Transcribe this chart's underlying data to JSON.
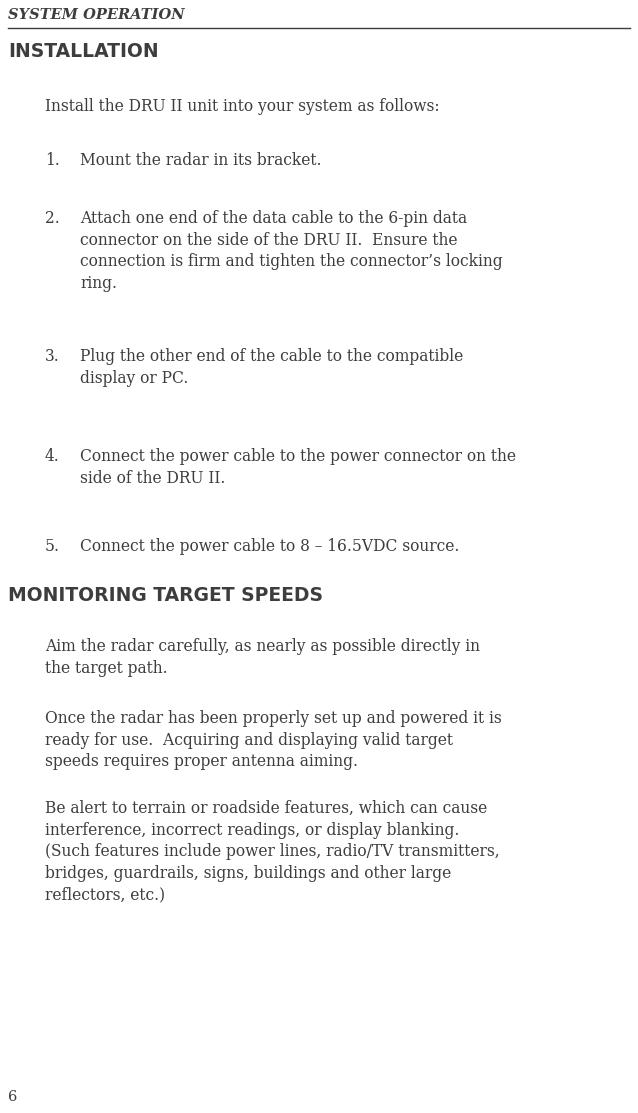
{
  "bg_color": "#ffffff",
  "text_color": "#3d3d3d",
  "header_text": "SYSTEM OPERATION",
  "page_number": "6",
  "section1_title": "INSTALLATION",
  "section1_intro": "Install the DRU II unit into your system as follows:",
  "list_items": [
    "Mount the radar in its bracket.",
    "Attach one end of the data cable to the 6-pin data\nconnector on the side of the DRU II.  Ensure the\nconnection is firm and tighten the connector’s locking\nring.",
    "Plug the other end of the cable to the compatible\ndisplay or PC.",
    "Connect the power cable to the power connector on the\nside of the DRU II.",
    "Connect the power cable to 8 – 16.5VDC source."
  ],
  "section2_title": "MONITORING TARGET SPEEDS",
  "para1": "Aim the radar carefully, as nearly as possible directly in\nthe target path.",
  "para2": "Once the radar has been properly set up and powered it is\nready for use.  Acquiring and displaying valid target\nspeeds requires proper antenna aiming.",
  "para3": "Be alert to terrain or roadside features, which can cause\ninterference, incorrect readings, or display blanking.\n(Such features include power lines, radio/TV transmitters,\nbridges, guardrails, signs, buildings and other large\nreflectors, etc.)"
}
